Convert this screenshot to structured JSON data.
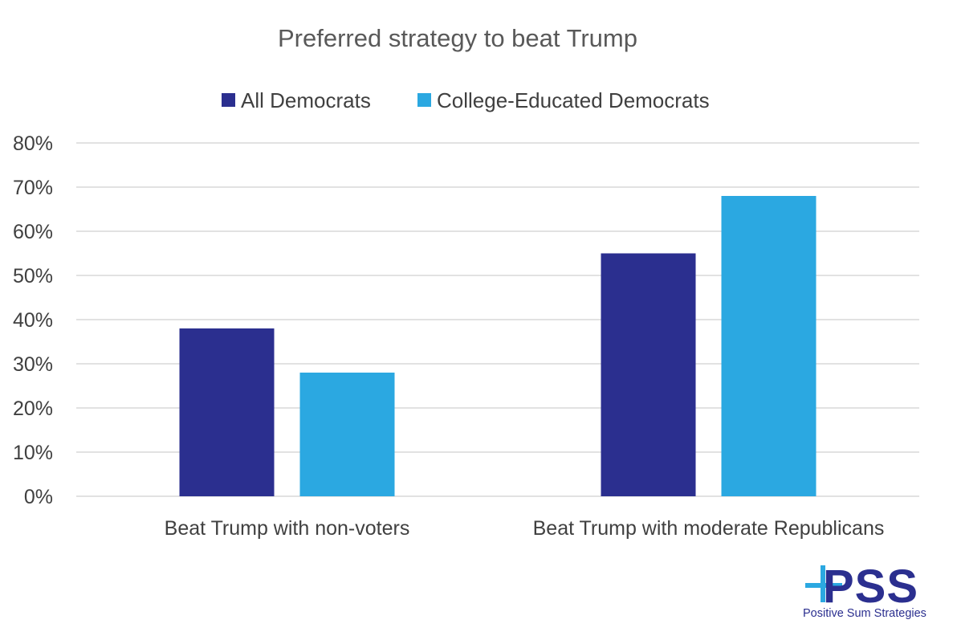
{
  "chart_data": {
    "type": "bar",
    "title": "Preferred strategy to beat Trump",
    "categories": [
      "Beat Trump with non-voters",
      "Beat Trump with moderate Republicans"
    ],
    "series": [
      {
        "name": "All Democrats",
        "values": [
          38,
          55
        ],
        "color": "#2b2f8f"
      },
      {
        "name": "College-Educated Democrats",
        "values": [
          28,
          68
        ],
        "color": "#2ba8e1"
      }
    ],
    "ylim": [
      0,
      80
    ],
    "yticks": [
      0,
      10,
      20,
      30,
      40,
      50,
      60,
      70,
      80
    ],
    "y_unit_suffix": "%",
    "grid": true,
    "legend_position": "top-center"
  },
  "logo": {
    "mark": "PSS",
    "caption": "Positive Sum Strategies",
    "mark_color": "#2b2f8f",
    "plus_color": "#2ba8e1"
  }
}
